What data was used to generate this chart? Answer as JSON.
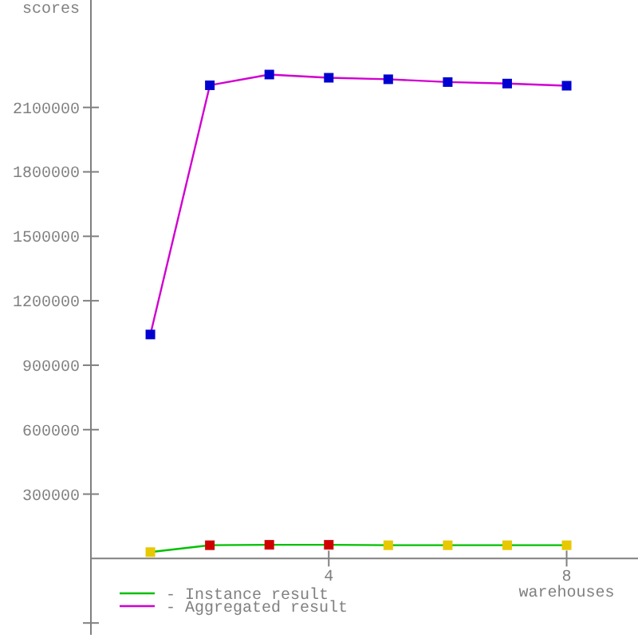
{
  "chart_data": {
    "type": "line",
    "xlabel": "warehouses",
    "ylabel": "scores",
    "xlim": [
      0,
      9.2
    ],
    "xticks": [
      4,
      8
    ],
    "ylim": [
      -355000,
      2600000
    ],
    "yticks": [
      {
        "value": -300000,
        "label": null
      },
      300000,
      600000,
      900000,
      1200000,
      1500000,
      1800000,
      2100000
    ],
    "x": [
      1,
      2,
      3,
      4,
      5,
      6,
      7,
      8
    ],
    "marker": "square",
    "grid": false,
    "legend": "bottom left",
    "series": [
      {
        "name": "- Instance result",
        "color": "#00c000",
        "values": [
          30000,
          62000,
          64000,
          64000,
          62000,
          62000,
          62000,
          62000
        ],
        "colors": [
          "#e8c800",
          "#d00000",
          "#d00000",
          "#d00000",
          "#e8c800",
          "#e8c800",
          "#e8c800",
          "#e8c800"
        ]
      },
      {
        "name": "- Aggregated result",
        "color": "#d000d0",
        "values": [
          1043000,
          2203000,
          2253000,
          2238000,
          2231000,
          2218000,
          2211000,
          2201000
        ],
        "colors": [
          "#0000d0",
          "#0000d0",
          "#0000d0",
          "#0000d0",
          "#0000d0",
          "#0000d0",
          "#0000d0",
          "#0000d0"
        ]
      }
    ]
  }
}
